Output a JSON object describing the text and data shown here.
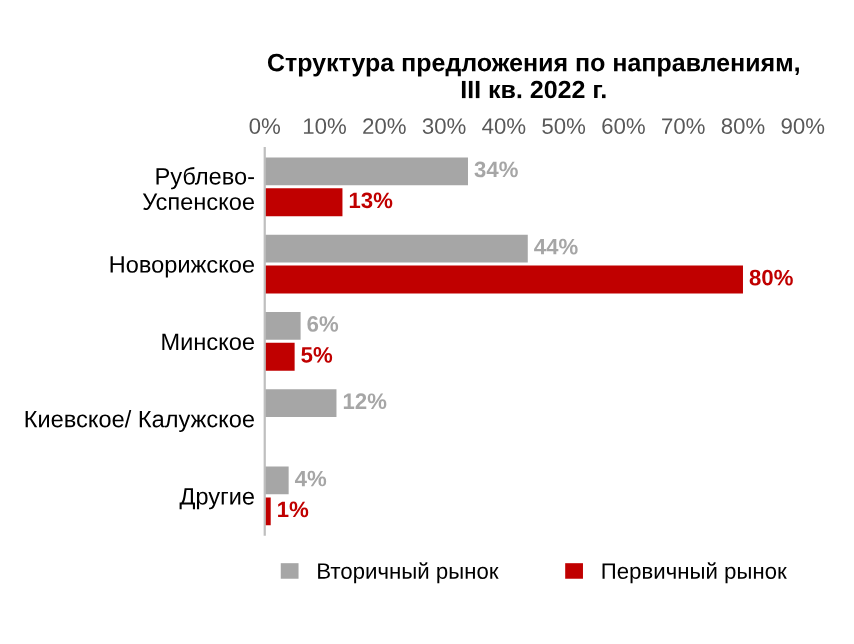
{
  "chart_data": {
    "type": "bar",
    "orientation": "horizontal",
    "title": "Структура предложения по направлениям,\nIII кв. 2022 г.",
    "categories": [
      "Рублево-\nУспенское",
      "Новорижское",
      "Минское",
      "Киевское/ Калужское",
      "Другие"
    ],
    "series": [
      {
        "name": "Вторичный рынок",
        "color": "#a6a6a6",
        "values": [
          34,
          44,
          6,
          12,
          4
        ],
        "value_labels": [
          "34%",
          "44%",
          "6%",
          "12%",
          "4%"
        ]
      },
      {
        "name": "Первичный рынок",
        "color": "#c00000",
        "values": [
          13,
          80,
          5,
          null,
          1
        ],
        "value_labels": [
          "13%",
          "80%",
          "5%",
          null,
          "1%"
        ]
      }
    ],
    "xlim": [
      0,
      90
    ],
    "xticks": [
      {
        "value": 0,
        "label": "0%"
      },
      {
        "value": 10,
        "label": "10%"
      },
      {
        "value": 20,
        "label": "20%"
      },
      {
        "value": 30,
        "label": "30%"
      },
      {
        "value": 40,
        "label": "40%"
      },
      {
        "value": 50,
        "label": "50%"
      },
      {
        "value": 60,
        "label": "60%"
      },
      {
        "value": 70,
        "label": "70%"
      },
      {
        "value": 80,
        "label": "80%"
      },
      {
        "value": 90,
        "label": "90%"
      }
    ],
    "grid": false,
    "legend": "bottom"
  }
}
